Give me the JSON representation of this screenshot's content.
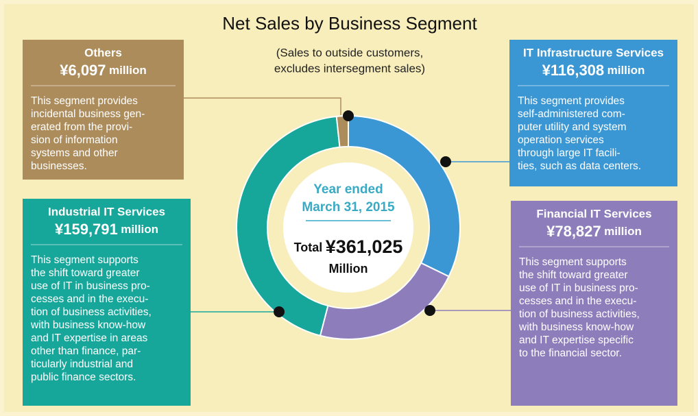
{
  "chart_data": {
    "type": "donut",
    "title": "Net Sales by Business Segment",
    "subtitle": [
      "(Sales to outside customers,",
      "excludes intersegment sales)"
    ],
    "categories": [
      "IT Infrastructure Services",
      "Financial IT Services",
      "Industrial IT Services",
      "Others"
    ],
    "values": [
      116308,
      78827,
      159791,
      6097
    ],
    "value_labels": [
      "¥116,308",
      "¥78,827",
      "¥159,791",
      "¥6,097"
    ],
    "unit": "million",
    "colors": [
      "#3a97d4",
      "#8d7dbb",
      "#17a69a",
      "#ad8c5c"
    ],
    "descriptions": [
      [
        "This segment provides",
        "self-administered com-",
        "puter utility and system",
        "operation services",
        "through large IT facili-",
        "ties, such as data centers."
      ],
      [
        "This segment supports",
        "the shift toward greater",
        "use of IT in business pro-",
        "cesses and in the execu-",
        "tion of business activities,",
        "with business know-how",
        "and IT expertise specific",
        "to the financial sector."
      ],
      [
        "This segment supports",
        "the shift toward greater",
        "use of IT in business pro-",
        "cesses and in the execu-",
        "tion of business activities,",
        "with business know-how",
        "and IT expertise in areas",
        "other than finance, par-",
        "ticularly industrial and",
        "public finance sectors."
      ],
      [
        "This segment provides",
        "incidental business gen-",
        "erated from the provi-",
        "sion of information",
        "systems and other",
        "businesses."
      ]
    ],
    "center": {
      "period": [
        "Year ended",
        "March 31, 2015"
      ],
      "total_prefix": "Total",
      "total": 361025,
      "total_label": "¥361,025",
      "total_unit": "Million"
    }
  }
}
